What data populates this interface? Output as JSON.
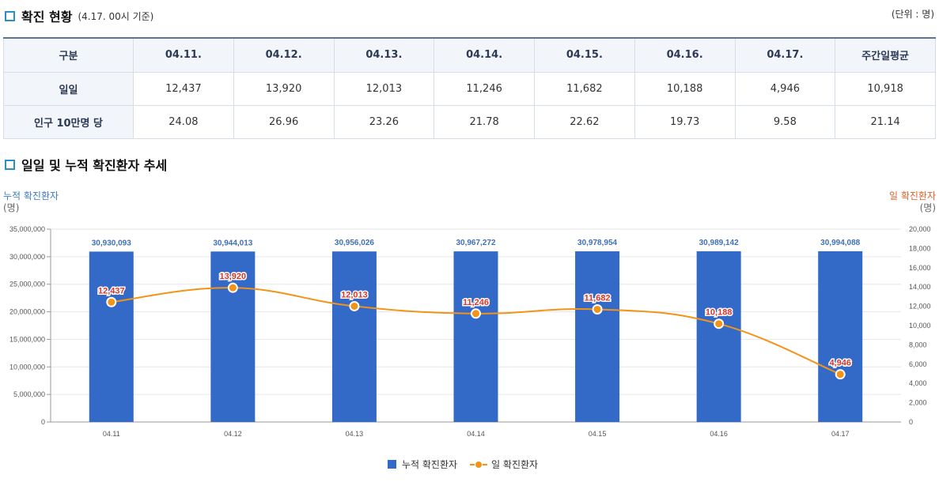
{
  "status": {
    "title": "확진 현황",
    "subtitle": "(4.17. 00시 기준)",
    "unit": "(단위 : 명)",
    "header": [
      "구분",
      "04.11.",
      "04.12.",
      "04.13.",
      "04.14.",
      "04.15.",
      "04.16.",
      "04.17.",
      "주간일평균"
    ],
    "rows": [
      {
        "label": "일일",
        "cells": [
          "12,437",
          "13,920",
          "12,013",
          "11,246",
          "11,682",
          "10,188",
          "4,946",
          "10,918"
        ]
      },
      {
        "label": "인구 10만명 당",
        "cells": [
          "24.08",
          "26.96",
          "23.26",
          "21.78",
          "22.62",
          "19.73",
          "9.58",
          "21.14"
        ]
      }
    ]
  },
  "trend": {
    "title": "일일 및 누적 확진환자 추세"
  },
  "chart_data": {
    "type": "bar",
    "categories": [
      "04.11",
      "04.12",
      "04.13",
      "04.14",
      "04.15",
      "04.16",
      "04.17"
    ],
    "series": [
      {
        "name": "누적 확진환자",
        "type": "bar",
        "axis": "left",
        "values": [
          30930093,
          30944013,
          30956026,
          30967272,
          30978954,
          30989142,
          30994088
        ],
        "labels": [
          "30,930,093",
          "30,944,013",
          "30,956,026",
          "30,967,272",
          "30,978,954",
          "30,989,142",
          "30,994,088"
        ],
        "color": "#3369c7"
      },
      {
        "name": "일 확진환자",
        "type": "line",
        "axis": "right",
        "values": [
          12437,
          13920,
          12013,
          11246,
          11682,
          10188,
          4946
        ],
        "labels": [
          "12,437",
          "13,920",
          "12,013",
          "11,246",
          "11,682",
          "10,188",
          "4,946"
        ],
        "color": "#f39318"
      }
    ],
    "ylabel_left": "누적 확진환자",
    "ylabel_left_unit": "(명)",
    "ylabel_right": "일 확진환자",
    "ylabel_right_unit": "(명)",
    "ylim_left": [
      0,
      35000000
    ],
    "ylim_right": [
      0,
      20000
    ],
    "yticks_left": [
      "0",
      "5,000,000",
      "10,000,000",
      "15,000,000",
      "20,000,000",
      "25,000,000",
      "30,000,000",
      "35,000,000"
    ],
    "yticks_right": [
      "0",
      "2,000",
      "4,000",
      "6,000",
      "8,000",
      "10,000",
      "12,000",
      "14,000",
      "16,000",
      "18,000",
      "20,000"
    ],
    "grid": true,
    "legend": "bottom-center"
  }
}
